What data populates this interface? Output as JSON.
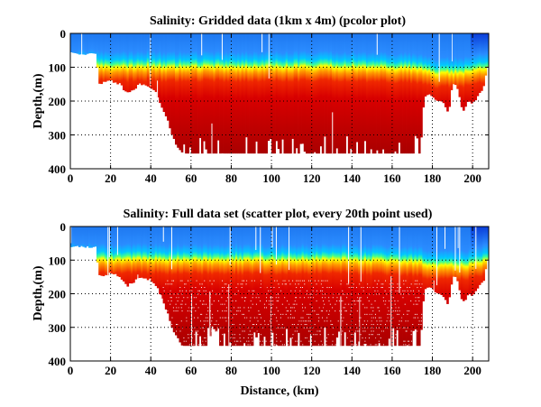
{
  "chart_data": [
    {
      "type": "heatmap",
      "title": "Salinity: Gridded data (1km x 4m) (pcolor plot)",
      "xlabel": "",
      "ylabel": "Depth,(m)",
      "xlim": [
        0,
        208
      ],
      "ylim": [
        0,
        400
      ],
      "y_reversed": true,
      "grid": true,
      "colormap": "jet",
      "xticks": [
        0,
        20,
        40,
        60,
        80,
        100,
        120,
        140,
        160,
        180,
        200
      ],
      "yticks": [
        0,
        100,
        200,
        300,
        400
      ],
      "profile_km": [
        0,
        5,
        10,
        13,
        14,
        16,
        20,
        25,
        28,
        30,
        35,
        40,
        43,
        45,
        48,
        50,
        52,
        54,
        56,
        60,
        100,
        140,
        170,
        174,
        175,
        176,
        178,
        182,
        186,
        188,
        190,
        192,
        195,
        198,
        200,
        203,
        206,
        207,
        208
      ],
      "bottom_depth_m": [
        60,
        60,
        60,
        60,
        150,
        145,
        140,
        150,
        180,
        170,
        150,
        160,
        180,
        210,
        250,
        290,
        320,
        340,
        355,
        355,
        355,
        355,
        355,
        355,
        260,
        185,
        180,
        195,
        210,
        235,
        150,
        150,
        230,
        200,
        210,
        180,
        155,
        100,
        100
      ],
      "transition_depth_m": [
        95,
        95,
        95,
        95,
        100,
        100,
        100,
        100,
        100,
        100,
        98,
        98,
        100,
        100,
        100,
        100,
        100,
        100,
        100,
        100,
        100,
        100,
        105,
        105,
        110,
        112,
        115,
        118,
        118,
        118,
        118,
        118,
        115,
        115,
        112,
        110,
        105,
        100,
        100
      ]
    },
    {
      "type": "scatter",
      "title": "Salinity: Full data set (scatter plot, every 20th point used)",
      "xlabel": "Distance, (km)",
      "ylabel": "Depth,(m)",
      "xlim": [
        0,
        208
      ],
      "ylim": [
        0,
        400
      ],
      "y_reversed": true,
      "grid": true,
      "colormap": "jet",
      "xticks": [
        0,
        20,
        40,
        60,
        80,
        100,
        120,
        140,
        160,
        180,
        200
      ],
      "yticks": [
        0,
        100,
        200,
        300,
        400
      ]
    }
  ]
}
